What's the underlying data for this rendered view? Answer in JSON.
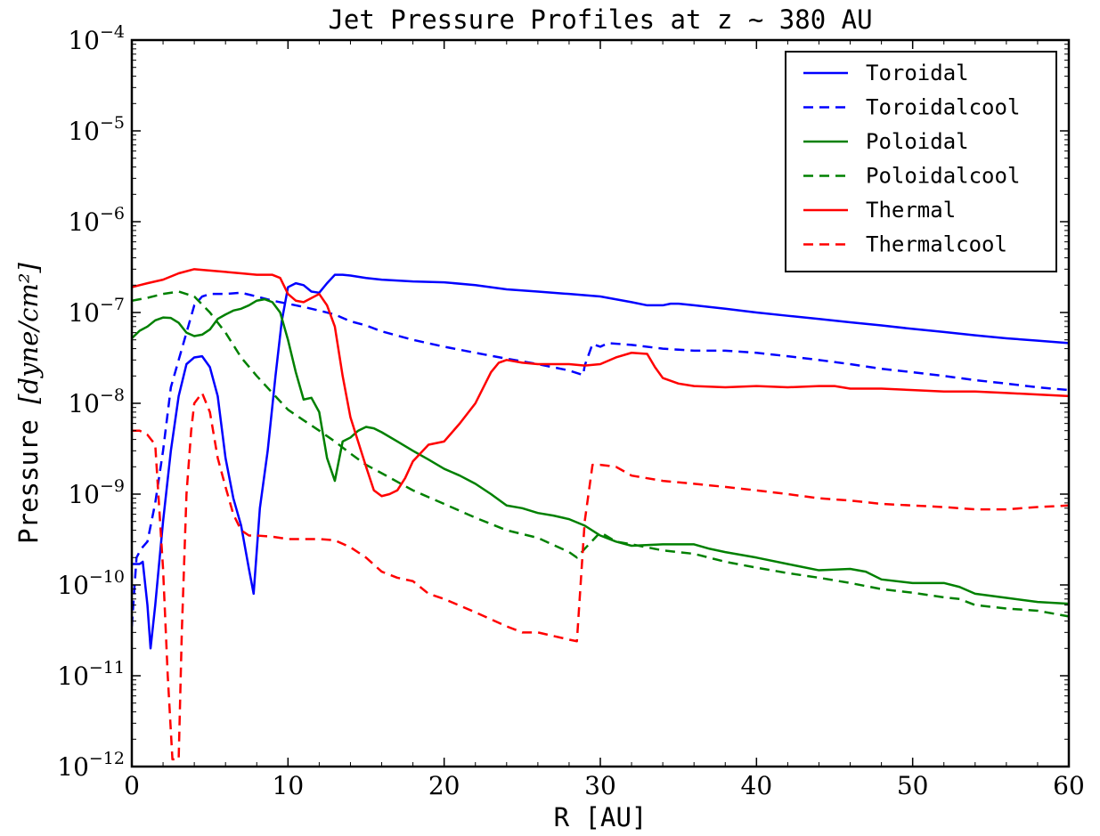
{
  "chart_data": {
    "type": "line",
    "title": "Jet Pressure Profiles at z ~ 380 AU",
    "xlabel": "R [AU]",
    "ylabel_prefix": "Pressure ",
    "ylabel_units": "[dyne/cm²]",
    "xlim": [
      0,
      60
    ],
    "ylim": [
      1e-12,
      0.0001
    ],
    "yscale": "log",
    "grid": false,
    "legend_position": "top-right",
    "x_ticks": [
      "0",
      "10",
      "20",
      "30",
      "40",
      "50",
      "60"
    ],
    "y_ticks": [
      {
        "base": "10",
        "exp": "−12"
      },
      {
        "base": "10",
        "exp": "−11"
      },
      {
        "base": "10",
        "exp": "−10"
      },
      {
        "base": "10",
        "exp": "−9"
      },
      {
        "base": "10",
        "exp": "−8"
      },
      {
        "base": "10",
        "exp": "−7"
      },
      {
        "base": "10",
        "exp": "−6"
      },
      {
        "base": "10",
        "exp": "−5"
      },
      {
        "base": "10",
        "exp": "−4"
      }
    ],
    "series": [
      {
        "name": "Toroidal",
        "color": "#0000ff",
        "style": "solid",
        "x": [
          0,
          0.5,
          0.7,
          1.0,
          1.2,
          1.5,
          2.0,
          2.5,
          3.0,
          3.5,
          4.0,
          4.5,
          5.0,
          5.5,
          6.0,
          6.5,
          7.0,
          7.5,
          7.8,
          8.2,
          8.7,
          9.2,
          9.6,
          10.0,
          10.5,
          11.0,
          11.5,
          12.0,
          12.5,
          13.0,
          13.5,
          14.0,
          15.0,
          16.0,
          17.0,
          18.0,
          20.0,
          22.0,
          24.0,
          26.0,
          28.0,
          30.0,
          32.0,
          33.0,
          34.0,
          34.5,
          35.0,
          36.0,
          38.0,
          40.0,
          42.0,
          44.0,
          46.0,
          48.0,
          50.0,
          52.0,
          54.0,
          56.0,
          58.0,
          60.0
        ],
        "y": [
          1.7e-10,
          1.7e-10,
          1.8e-10,
          6e-11,
          2e-11,
          6e-11,
          5e-10,
          3e-09,
          1.2e-08,
          2.7e-08,
          3.2e-08,
          3.3e-08,
          2.5e-08,
          1.2e-08,
          2.5e-09,
          9e-10,
          4.5e-10,
          1.5e-10,
          8e-11,
          7e-10,
          3e-09,
          2e-08,
          8e-08,
          1.9e-07,
          2.1e-07,
          2e-07,
          1.7e-07,
          1.65e-07,
          2.1e-07,
          2.6e-07,
          2.6e-07,
          2.55e-07,
          2.4e-07,
          2.3e-07,
          2.25e-07,
          2.2e-07,
          2.15e-07,
          2e-07,
          1.8e-07,
          1.7e-07,
          1.6e-07,
          1.5e-07,
          1.3e-07,
          1.2e-07,
          1.2e-07,
          1.25e-07,
          1.25e-07,
          1.2e-07,
          1.1e-07,
          1e-07,
          9.2e-08,
          8.5e-08,
          7.8e-08,
          7.2e-08,
          6.6e-08,
          6.1e-08,
          5.6e-08,
          5.2e-08,
          4.9e-08,
          4.6e-08
        ]
      },
      {
        "name": "Toroidalcool",
        "color": "#0000ff",
        "style": "dashed",
        "x": [
          0,
          0.3,
          0.6,
          1.0,
          1.5,
          2.0,
          2.5,
          3.0,
          3.5,
          4.0,
          4.5,
          5.0,
          6.0,
          7.0,
          8.0,
          9.0,
          10.0,
          11.0,
          12.0,
          13.0,
          14.0,
          15.0,
          16.0,
          18.0,
          20.0,
          22.0,
          24.0,
          26.0,
          28.0,
          28.9,
          29.0,
          29.5,
          30.0,
          30.5,
          32.0,
          34.0,
          36.0,
          38.0,
          40.0,
          42.0,
          44.0,
          46.0,
          48.0,
          50.0,
          52.0,
          54.0,
          56.0,
          58.0,
          60.0
        ],
        "y": [
          3.5e-11,
          2e-10,
          2.5e-10,
          3e-10,
          8e-10,
          3e-09,
          1.5e-08,
          3e-08,
          6e-08,
          1.2e-07,
          1.5e-07,
          1.6e-07,
          1.6e-07,
          1.65e-07,
          1.5e-07,
          1.35e-07,
          1.25e-07,
          1.15e-07,
          1.05e-07,
          9.5e-08,
          8e-08,
          7.2e-08,
          6.2e-08,
          5e-08,
          4.2e-08,
          3.6e-08,
          3.1e-08,
          2.7e-08,
          2.3e-08,
          2.05e-08,
          2.6e-08,
          4.5e-08,
          4.2e-08,
          4.6e-08,
          4.4e-08,
          4e-08,
          3.8e-08,
          3.8e-08,
          3.6e-08,
          3.3e-08,
          3e-08,
          2.7e-08,
          2.4e-08,
          2.2e-08,
          2e-08,
          1.8e-08,
          1.65e-08,
          1.5e-08,
          1.4e-08
        ]
      },
      {
        "name": "Poloidal",
        "color": "#008000",
        "style": "solid",
        "x": [
          0,
          0.5,
          1.0,
          1.5,
          2.0,
          2.5,
          3.0,
          3.5,
          4.0,
          4.5,
          5.0,
          5.5,
          6.0,
          6.5,
          7.0,
          7.5,
          8.0,
          8.5,
          9.0,
          9.5,
          10.0,
          10.5,
          11.0,
          11.5,
          12.0,
          12.5,
          13.0,
          13.5,
          14.0,
          14.5,
          15.0,
          15.5,
          16.0,
          17.0,
          18.0,
          19.0,
          20.0,
          21.0,
          22.0,
          23.0,
          24.0,
          25.0,
          26.0,
          27.0,
          28.0,
          29.0,
          30.0,
          31.0,
          32.0,
          34.0,
          36.0,
          37.0,
          38.0,
          40.0,
          42.0,
          44.0,
          46.0,
          47.0,
          48.0,
          50.0,
          52.0,
          53.0,
          54.0,
          56.0,
          58.0,
          60.0
        ],
        "y": [
          5.2e-08,
          6.3e-08,
          7e-08,
          8.2e-08,
          8.8e-08,
          8.7e-08,
          7.7e-08,
          6e-08,
          5.5e-08,
          5.7e-08,
          6.5e-08,
          8.5e-08,
          9.5e-08,
          1.05e-07,
          1.1e-07,
          1.2e-07,
          1.35e-07,
          1.4e-07,
          1.3e-07,
          1e-07,
          5e-08,
          2.2e-08,
          1.1e-08,
          1.15e-08,
          8e-09,
          2.5e-09,
          1.4e-09,
          3.8e-09,
          4.2e-09,
          5e-09,
          5.5e-09,
          5.3e-09,
          4.8e-09,
          3.8e-09,
          3e-09,
          2.4e-09,
          1.9e-09,
          1.6e-09,
          1.3e-09,
          1e-09,
          7.5e-10,
          7e-10,
          6.2e-10,
          5.8e-10,
          5.3e-10,
          4.5e-10,
          3.5e-10,
          3e-10,
          2.7e-10,
          2.8e-10,
          2.8e-10,
          2.5e-10,
          2.3e-10,
          2e-10,
          1.7e-10,
          1.45e-10,
          1.5e-10,
          1.4e-10,
          1.15e-10,
          1.05e-10,
          1.05e-10,
          9.5e-11,
          8e-11,
          7.2e-11,
          6.5e-11,
          6.2e-11
        ]
      },
      {
        "name": "Poloidalcool",
        "color": "#008000",
        "style": "dashed",
        "x": [
          0,
          1.0,
          2.0,
          3.0,
          4.0,
          5.0,
          6.0,
          7.0,
          8.0,
          9.0,
          10.0,
          11.0,
          12.0,
          13.0,
          14.0,
          15.0,
          16.0,
          18.0,
          20.0,
          22.0,
          24.0,
          26.0,
          28.0,
          28.5,
          29.0,
          30.0,
          31.0,
          32.0,
          34.0,
          36.0,
          38.0,
          40.0,
          42.0,
          44.0,
          46.0,
          48.0,
          50.0,
          52.0,
          53.0,
          54.0,
          56.0,
          58.0,
          60.0
        ],
        "y": [
          1.35e-07,
          1.45e-07,
          1.6e-07,
          1.7e-07,
          1.5e-07,
          1e-07,
          6e-08,
          3.2e-08,
          2e-08,
          1.3e-08,
          8.5e-09,
          6.5e-09,
          5e-09,
          3.8e-09,
          2.8e-09,
          2.1e-09,
          1.7e-09,
          1.1e-09,
          7.8e-10,
          5.5e-10,
          4e-10,
          3.3e-10,
          2.3e-10,
          2e-10,
          2.5e-10,
          3.8e-10,
          3e-10,
          2.8e-10,
          2.4e-10,
          2.2e-10,
          1.8e-10,
          1.55e-10,
          1.35e-10,
          1.2e-10,
          1.05e-10,
          9e-11,
          8.2e-11,
          7.3e-11,
          7e-11,
          6e-11,
          5.5e-11,
          5.2e-11,
          4.5e-11
        ]
      },
      {
        "name": "Thermal",
        "color": "#ff0000",
        "style": "solid",
        "x": [
          0,
          0.5,
          1.0,
          2.0,
          3.0,
          4.0,
          5.0,
          6.0,
          7.0,
          8.0,
          9.0,
          9.5,
          10.0,
          10.5,
          11.0,
          12.0,
          12.5,
          13.0,
          13.5,
          14.0,
          15.0,
          15.5,
          16.0,
          16.5,
          17.0,
          17.5,
          18.0,
          19.0,
          20.0,
          21.0,
          22.0,
          23.0,
          23.5,
          24.0,
          25.0,
          26.0,
          27.0,
          28.0,
          29.0,
          30.0,
          31.0,
          32.0,
          33.0,
          33.5,
          34.0,
          35.0,
          36.0,
          38.0,
          40.0,
          42.0,
          44.0,
          45.0,
          46.0,
          48.0,
          50.0,
          52.0,
          54.0,
          56.0,
          58.0,
          60.0
        ],
        "y": [
          1.9e-07,
          2e-07,
          2.1e-07,
          2.3e-07,
          2.7e-07,
          3e-07,
          2.9e-07,
          2.8e-07,
          2.7e-07,
          2.6e-07,
          2.6e-07,
          2.4e-07,
          1.6e-07,
          1.35e-07,
          1.3e-07,
          1.6e-07,
          1.2e-07,
          7e-08,
          2e-08,
          7e-09,
          2e-09,
          1.1e-09,
          9.5e-10,
          1e-09,
          1.1e-09,
          1.5e-09,
          2.3e-09,
          3.5e-09,
          3.8e-09,
          6e-09,
          1e-08,
          2.2e-08,
          2.8e-08,
          3e-08,
          2.8e-08,
          2.7e-08,
          2.7e-08,
          2.7e-08,
          2.6e-08,
          2.7e-08,
          3.2e-08,
          3.6e-08,
          3.5e-08,
          2.5e-08,
          1.9e-08,
          1.65e-08,
          1.55e-08,
          1.5e-08,
          1.55e-08,
          1.5e-08,
          1.55e-08,
          1.55e-08,
          1.45e-08,
          1.45e-08,
          1.4e-08,
          1.35e-08,
          1.35e-08,
          1.3e-08,
          1.25e-08,
          1.2e-08
        ]
      },
      {
        "name": "Thermalcool",
        "color": "#ff0000",
        "style": "dashed",
        "x": [
          0,
          0.5,
          1.0,
          1.5,
          2.0,
          2.3,
          2.6,
          2.8,
          3.0,
          3.2,
          3.5,
          3.8,
          4.0,
          4.5,
          5.0,
          5.5,
          6.0,
          6.5,
          7.0,
          7.5,
          8.0,
          9.0,
          10.0,
          11.0,
          12.0,
          13.0,
          14.0,
          15.0,
          16.0,
          17.0,
          18.0,
          19.0,
          20.0,
          22.0,
          24.0,
          25.0,
          26.0,
          28.0,
          28.5,
          29.0,
          29.5,
          30.0,
          31.0,
          32.0,
          34.0,
          36.0,
          38.0,
          40.0,
          42.0,
          44.0,
          46.0,
          48.0,
          50.0,
          52.0,
          54.0,
          55.0,
          56.0,
          58.0,
          60.0
        ],
        "y": [
          5e-09,
          5e-09,
          4.5e-09,
          3.5e-09,
          1.5e-10,
          1e-11,
          1.2e-12,
          1.2e-12,
          1.2e-12,
          3e-11,
          1e-09,
          5e-09,
          1e-08,
          1.3e-08,
          8e-09,
          2.5e-09,
          1.2e-09,
          6e-10,
          4e-10,
          3.5e-10,
          3.5e-10,
          3.4e-10,
          3.2e-10,
          3.2e-10,
          3.2e-10,
          3.1e-10,
          2.6e-10,
          2e-10,
          1.4e-10,
          1.2e-10,
          1.1e-10,
          8e-11,
          7e-11,
          5e-11,
          3.5e-11,
          3e-11,
          3e-11,
          2.5e-11,
          2.4e-11,
          5e-10,
          2.1e-09,
          2.1e-09,
          2e-09,
          1.6e-09,
          1.4e-09,
          1.3e-09,
          1.2e-09,
          1.1e-09,
          1e-09,
          9e-10,
          8.5e-10,
          7.8e-10,
          7.5e-10,
          7.2e-10,
          6.8e-10,
          6.8e-10,
          6.8e-10,
          7.2e-10,
          7.5e-10
        ]
      }
    ]
  }
}
